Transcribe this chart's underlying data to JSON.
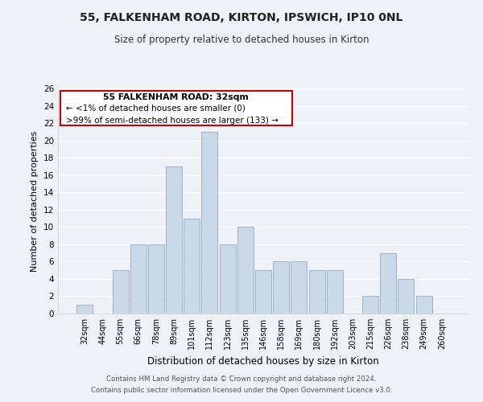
{
  "title": "55, FALKENHAM ROAD, KIRTON, IPSWICH, IP10 0NL",
  "subtitle": "Size of property relative to detached houses in Kirton",
  "xlabel": "Distribution of detached houses by size in Kirton",
  "ylabel": "Number of detached properties",
  "bin_labels": [
    "32sqm",
    "44sqm",
    "55sqm",
    "66sqm",
    "78sqm",
    "89sqm",
    "101sqm",
    "112sqm",
    "123sqm",
    "135sqm",
    "146sqm",
    "158sqm",
    "169sqm",
    "180sqm",
    "192sqm",
    "203sqm",
    "215sqm",
    "226sqm",
    "238sqm",
    "249sqm",
    "260sqm"
  ],
  "bar_heights": [
    1,
    0,
    5,
    8,
    8,
    17,
    11,
    21,
    8,
    10,
    5,
    6,
    6,
    5,
    5,
    0,
    2,
    7,
    4,
    2,
    0
  ],
  "bar_color": "#c9d9e8",
  "bar_edge_color": "#8899bb",
  "ylim": [
    0,
    26
  ],
  "yticks": [
    0,
    2,
    4,
    6,
    8,
    10,
    12,
    14,
    16,
    18,
    20,
    22,
    24,
    26
  ],
  "annotation_title": "55 FALKENHAM ROAD: 32sqm",
  "annotation_line1": "← <1% of detached houses are smaller (0)",
  "annotation_line2": ">99% of semi-detached houses are larger (133) →",
  "annotation_box_edge": "#cc0000",
  "footer_line1": "Contains HM Land Registry data © Crown copyright and database right 2024.",
  "footer_line2": "Contains public sector information licensed under the Open Government Licence v3.0.",
  "background_color": "#eef2f6",
  "grid_color": "#ffffff"
}
